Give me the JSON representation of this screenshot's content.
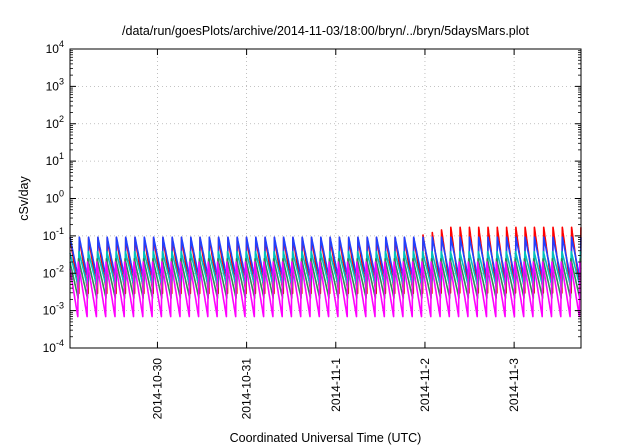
{
  "chart_data": {
    "type": "line",
    "title": "/data/run/goesPlots/archive/2014-11-03/18:00/bryn/../bryn/5daysMars.plot",
    "xlabel": "Coordinated Universal Time (UTC)",
    "ylabel": "cSv/day",
    "yscale": "log",
    "ylim": [
      0.0001,
      10000
    ],
    "xlim": [
      "2014-10-29T00:28",
      "2014-11-03T18:00"
    ],
    "grid": true,
    "legend": "none",
    "x_ticks": [
      {
        "label": "2014-10-30",
        "value": "2014-10-30T00:00"
      },
      {
        "label": "2014-10-31",
        "value": "2014-10-31T00:00"
      },
      {
        "label": "2014-11-1",
        "value": "2014-11-01T00:00"
      },
      {
        "label": "2014-11-2",
        "value": "2014-11-02T00:00"
      },
      {
        "label": "2014-11-3",
        "value": "2014-11-03T00:00"
      }
    ],
    "y_ticks": [
      {
        "base": "10",
        "exp": "-4",
        "value": 0.0001
      },
      {
        "base": "10",
        "exp": "-3",
        "value": 0.001
      },
      {
        "base": "10",
        "exp": "-2",
        "value": 0.01
      },
      {
        "base": "10",
        "exp": "-1",
        "value": 0.1
      },
      {
        "base": "10",
        "exp": "0",
        "value": 1
      },
      {
        "base": "10",
        "exp": "1",
        "value": 10
      },
      {
        "base": "10",
        "exp": "2",
        "value": 100
      },
      {
        "base": "10",
        "exp": "3",
        "value": 1000
      },
      {
        "base": "10",
        "exp": "4",
        "value": 10000
      }
    ],
    "sawtooth_period_hours": 2.5,
    "series": [
      {
        "color": "#ff0000",
        "peak_cSv_per_day": 0.09,
        "trough_cSv_per_day": 0.0025,
        "late_peak_cSv_per_day": 0.17,
        "late_from": "2014-11-01T21:00"
      },
      {
        "color": "#2040ff",
        "peak_cSv_per_day": 0.1,
        "trough_cSv_per_day": 0.006
      },
      {
        "color": "#00c0c0",
        "peak_cSv_per_day": 0.04,
        "trough_cSv_per_day": 0.004
      },
      {
        "color": "#2e8b57",
        "peak_cSv_per_day": 0.025,
        "trough_cSv_per_day": 0.002
      },
      {
        "color": "#ff00ff",
        "peak_cSv_per_day": 0.02,
        "trough_cSv_per_day": 0.0006
      }
    ]
  }
}
